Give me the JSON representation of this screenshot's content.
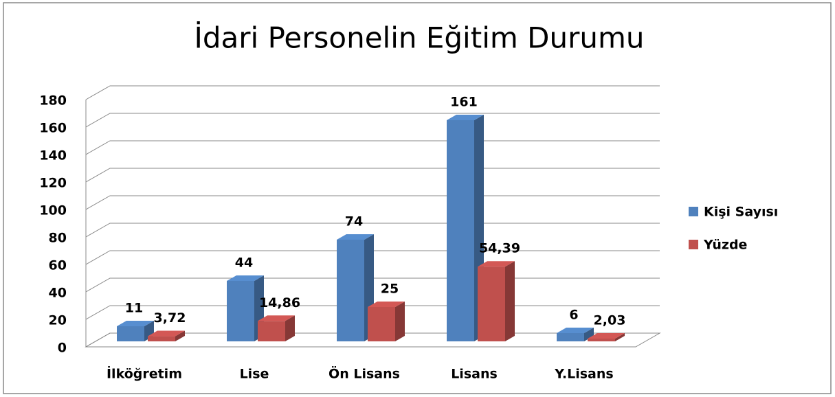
{
  "chart_data": {
    "type": "bar3d",
    "title": "İdari Personelin Eğitim Durumu",
    "categories": [
      "İlköğretim",
      "Lise",
      "Ön Lisans",
      "Lisans",
      "Y.Lisans"
    ],
    "series": [
      {
        "name": "Kişi Sayısı",
        "color": "#4f81bd",
        "values": [
          11,
          44,
          74,
          161,
          6
        ]
      },
      {
        "name": "Yüzde",
        "color": "#c0504d",
        "values": [
          3.72,
          14.86,
          25,
          54.39,
          2.03
        ],
        "value_labels": [
          "3,72",
          "14,86",
          "25",
          "54,39",
          "2,03"
        ]
      }
    ],
    "ylim": [
      0,
      180
    ],
    "yticks": [
      0,
      20,
      40,
      60,
      80,
      100,
      120,
      140,
      160,
      180
    ],
    "grid": true,
    "legend": "right"
  }
}
